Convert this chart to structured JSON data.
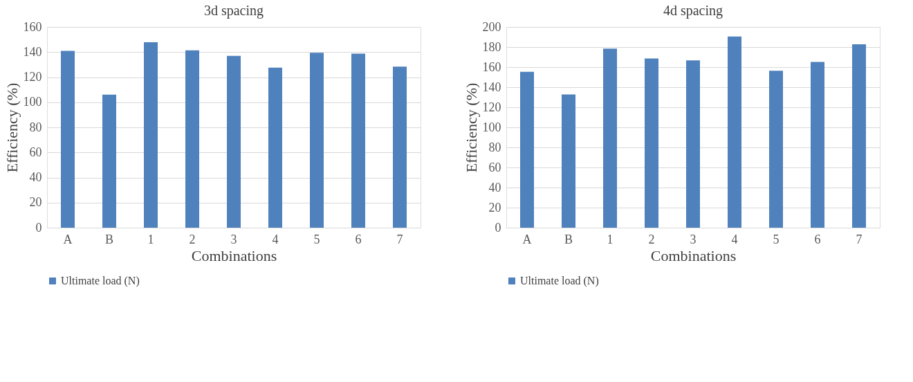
{
  "chart_data": [
    {
      "type": "bar",
      "title": "3d spacing",
      "xlabel": "Combinations",
      "ylabel": "Efficiency (%)",
      "categories": [
        "A",
        "B",
        "1",
        "2",
        "3",
        "4",
        "5",
        "6",
        "7"
      ],
      "series": [
        {
          "name": "Ultimate load (N)",
          "color": "#4f81bd",
          "values": [
            141.0,
            106.1,
            147.8,
            141.4,
            136.9,
            127.6,
            139.5,
            138.7,
            128.4
          ]
        }
      ],
      "ylim": [
        0,
        160
      ],
      "yticks": [
        0,
        20,
        40,
        60,
        80,
        100,
        120,
        140,
        160
      ],
      "grid": "y",
      "legend": "bottom"
    },
    {
      "type": "bar",
      "title": "4d spacing",
      "xlabel": "Combinations",
      "ylabel": "Efficiency (%)",
      "categories": [
        "A",
        "B",
        "1",
        "2",
        "3",
        "4",
        "5",
        "6",
        "7"
      ],
      "series": [
        {
          "name": "Ultimate load (N)",
          "color": "#4f81bd",
          "values": [
            155.3,
            132.8,
            178.5,
            168.7,
            166.8,
            190.5,
            156.3,
            165.1,
            182.7
          ]
        }
      ],
      "ylim": [
        0,
        200
      ],
      "yticks": [
        0,
        20,
        40,
        60,
        80,
        100,
        120,
        140,
        160,
        180,
        200
      ],
      "grid": "y",
      "legend": "bottom"
    }
  ]
}
